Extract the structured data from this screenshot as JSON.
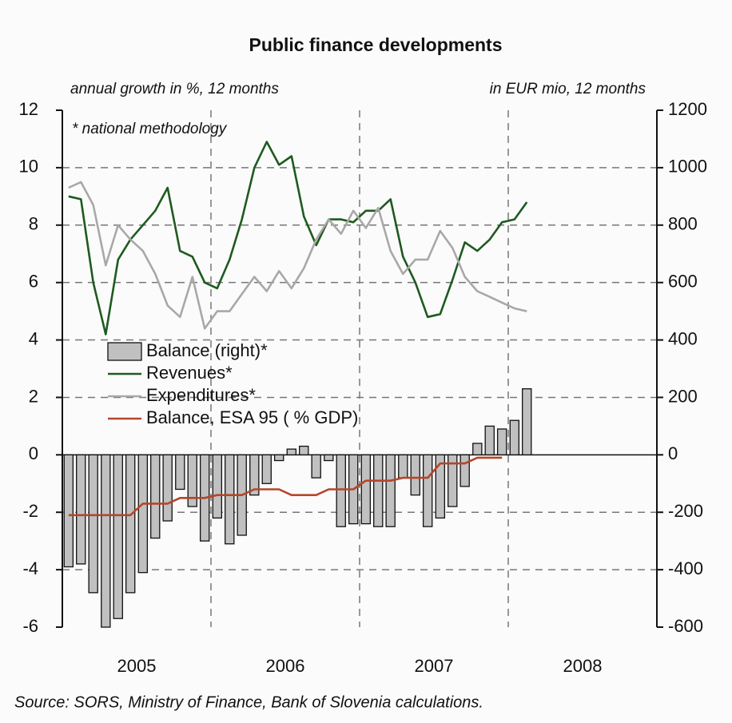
{
  "chart_data": {
    "type": "bar",
    "title": "Public finance developments",
    "y_label": "annual growth in %, 12 months",
    "y2_label": "in EUR mio, 12 months",
    "annotation": "* national methodology",
    "source": "Source: SORS, Ministry of Finance, Bank of Slovenia calculations.",
    "x": [
      2005.042,
      2005.125,
      2005.208,
      2005.292,
      2005.375,
      2005.458,
      2005.542,
      2005.625,
      2005.708,
      2005.792,
      2005.875,
      2005.958,
      2006.042,
      2006.125,
      2006.208,
      2006.292,
      2006.375,
      2006.458,
      2006.542,
      2006.625,
      2006.708,
      2006.792,
      2006.875,
      2006.958,
      2007.042,
      2007.125,
      2007.208,
      2007.292,
      2007.375,
      2007.458,
      2007.542,
      2007.625,
      2007.708,
      2007.792,
      2007.875,
      2007.958,
      2008.042,
      2008.125
    ],
    "xlim": [
      2005,
      2009
    ],
    "xticks": [
      {
        "value": 2005.5,
        "label": "2005"
      },
      {
        "value": 2006.5,
        "label": "2006"
      },
      {
        "value": 2007.5,
        "label": "2007"
      },
      {
        "value": 2008.5,
        "label": "2008"
      }
    ],
    "xgrid": [
      2006,
      2007,
      2008
    ],
    "ylim": [
      -6,
      12
    ],
    "yticks": [
      -6,
      -4,
      -2,
      0,
      2,
      4,
      6,
      8,
      10,
      12
    ],
    "y2lim": [
      -600,
      1200
    ],
    "y2ticks": [
      -600,
      -400,
      -200,
      0,
      200,
      400,
      600,
      800,
      1000,
      1200
    ],
    "grid": true,
    "legend": "center left",
    "series": [
      {
        "name": "Balance (right)*",
        "type": "bar",
        "axis": "y2",
        "color": "#c0c0c0",
        "values": [
          -390,
          -380,
          -480,
          -600,
          -570,
          -480,
          -410,
          -290,
          -230,
          -120,
          -180,
          -300,
          -220,
          -310,
          -280,
          -140,
          -100,
          -20,
          20,
          30,
          -80,
          -20,
          -250,
          -240,
          -240,
          -250,
          -250,
          -80,
          -140,
          -250,
          -220,
          -180,
          -110,
          40,
          100,
          90,
          120,
          230
        ]
      },
      {
        "name": "Revenues*",
        "type": "line",
        "color": "#1e5a1e",
        "values": [
          9.0,
          8.9,
          6.0,
          4.2,
          6.8,
          7.5,
          8.0,
          8.5,
          9.3,
          7.1,
          6.9,
          6.0,
          5.8,
          6.8,
          8.2,
          10.0,
          10.9,
          10.1,
          10.4,
          8.3,
          7.3,
          8.2,
          8.2,
          8.1,
          8.5,
          8.5,
          8.9,
          6.9,
          6.0,
          4.8,
          4.9,
          6.1,
          7.4,
          7.1,
          7.5,
          8.1,
          8.2,
          8.8
        ]
      },
      {
        "name": "Expenditures*",
        "type": "line",
        "color": "#a8a8a8",
        "values": [
          9.3,
          9.5,
          8.7,
          6.6,
          8.0,
          7.5,
          7.1,
          6.3,
          5.2,
          4.8,
          6.2,
          4.4,
          5.0,
          5.0,
          5.6,
          6.2,
          5.7,
          6.4,
          5.8,
          6.5,
          7.5,
          8.2,
          7.7,
          8.5,
          7.9,
          8.6,
          7.1,
          6.3,
          6.8,
          6.8,
          7.8,
          7.2,
          6.2,
          5.7,
          5.5,
          5.3,
          5.1,
          5.0
        ]
      },
      {
        "name": "Balance, ESA 95 ( % GDP)",
        "type": "line",
        "color": "#b5462a",
        "values": [
          -2.1,
          -2.1,
          -2.1,
          -2.1,
          -2.1,
          -2.1,
          -1.7,
          -1.7,
          -1.7,
          -1.5,
          -1.5,
          -1.5,
          -1.4,
          -1.4,
          -1.4,
          -1.2,
          -1.2,
          -1.2,
          -1.4,
          -1.4,
          -1.4,
          -1.2,
          -1.2,
          -1.2,
          -0.9,
          -0.9,
          -0.9,
          -0.8,
          -0.8,
          -0.8,
          -0.3,
          -0.3,
          -0.3,
          -0.1,
          -0.1,
          -0.1,
          null,
          null
        ]
      }
    ]
  }
}
